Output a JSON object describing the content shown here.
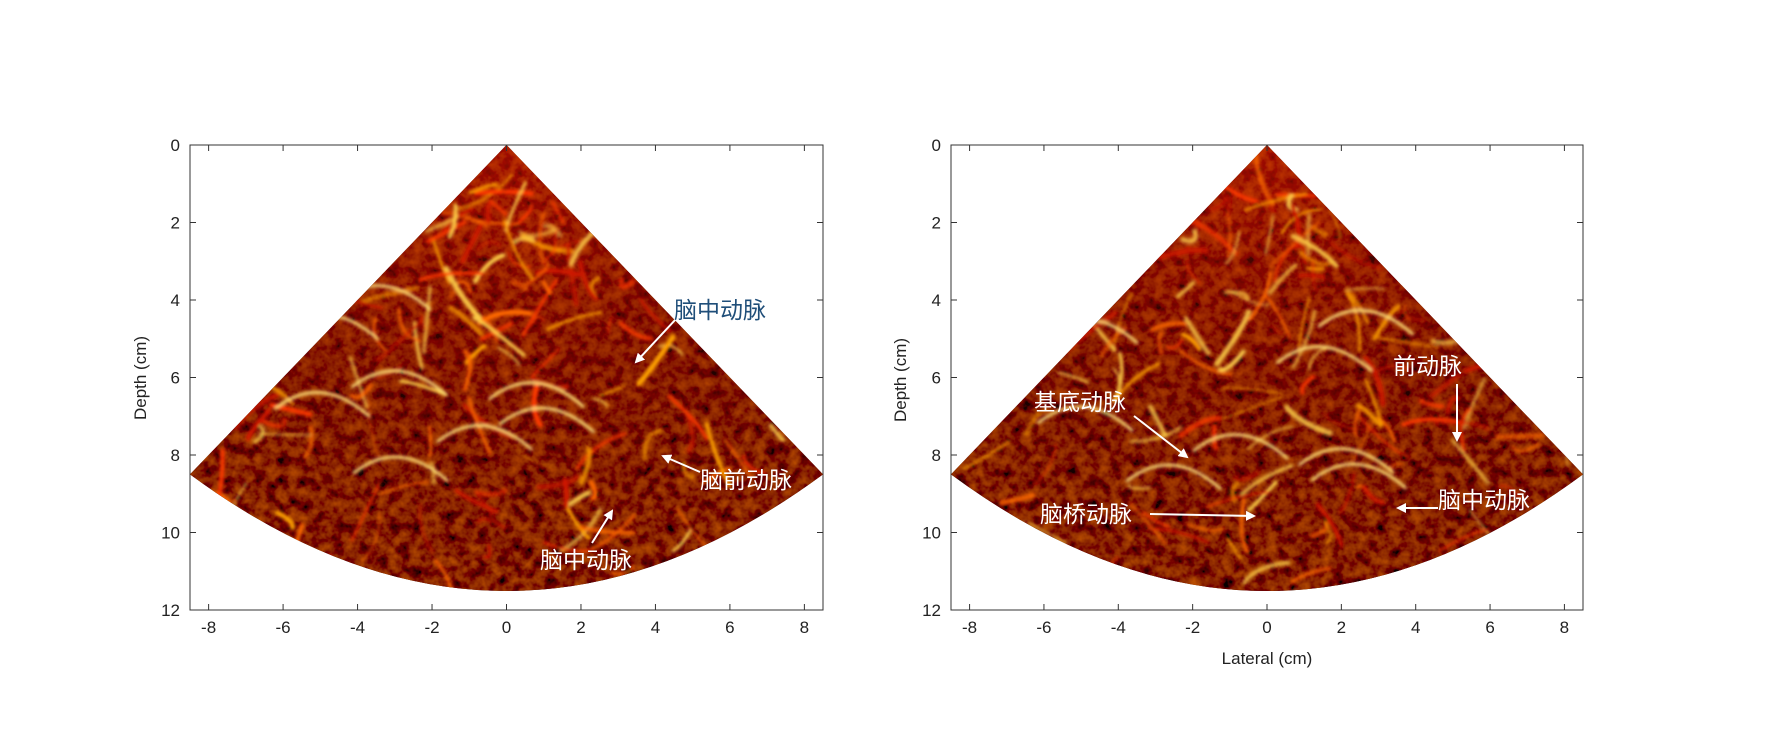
{
  "figure": {
    "colors": {
      "background": "#000000",
      "vessel_dark": "#5a0000",
      "vessel_mid": "#c81e00",
      "vessel_bright": "#ff9a00",
      "vessel_peak": "#fff4a0",
      "annotation_blue": "#1f4e79",
      "annotation_white": "#ffffff"
    },
    "panels": [
      {
        "id": "left",
        "ylabel": "Depth (cm)",
        "xlabel": "",
        "x_ticks": [
          "-8",
          "-6",
          "-4",
          "-2",
          "0",
          "2",
          "4",
          "6",
          "8"
        ],
        "y_ticks": [
          "0",
          "2",
          "4",
          "6",
          "8",
          "10",
          "12"
        ],
        "xlim": [
          -8.5,
          8.5
        ],
        "ylim": [
          0,
          12
        ],
        "annotations": [
          {
            "text": "脑中动脉",
            "color": "blue"
          },
          {
            "text": "脑前动脉",
            "color": "white"
          },
          {
            "text": "脑中动脉",
            "color": "white"
          }
        ]
      },
      {
        "id": "right",
        "ylabel": "Depth (cm)",
        "xlabel": "Lateral (cm)",
        "x_ticks": [
          "-8",
          "-6",
          "-4",
          "-2",
          "0",
          "2",
          "4",
          "6",
          "8"
        ],
        "y_ticks": [
          "0",
          "2",
          "4",
          "6",
          "8",
          "10",
          "12"
        ],
        "xlim": [
          -8.5,
          8.5
        ],
        "ylim": [
          0,
          12
        ],
        "annotations": [
          {
            "text": "前动脉",
            "color": "white"
          },
          {
            "text": "基底动脉",
            "color": "white"
          },
          {
            "text": "脑桥动脉",
            "color": "white"
          },
          {
            "text": "脑中动脉",
            "color": "white"
          }
        ]
      }
    ]
  }
}
